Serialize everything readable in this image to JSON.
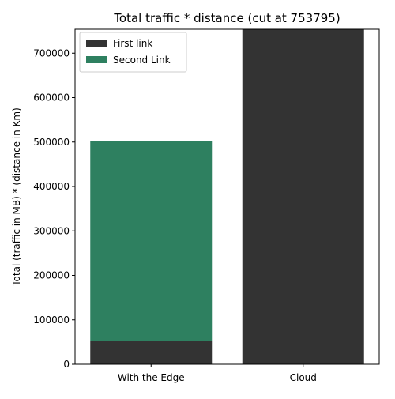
{
  "chart_data": {
    "type": "bar",
    "stacked": true,
    "title": "Total traffic * distance (cut at 753795)",
    "xlabel": "",
    "ylabel": "Total (traffic in MB) * (distance in Km)",
    "categories": [
      "With the Edge",
      "Cloud"
    ],
    "series": [
      {
        "name": "First link",
        "color": "#333333",
        "values": [
          52000,
          753795
        ]
      },
      {
        "name": "Second Link",
        "color": "#2e8060",
        "values": [
          450000,
          0
        ]
      }
    ],
    "ylim": [
      0,
      753795
    ],
    "yticks": [
      0,
      100000,
      200000,
      300000,
      400000,
      500000,
      600000,
      700000
    ],
    "ytick_labels": [
      "0",
      "100000",
      "200000",
      "300000",
      "400000",
      "500000",
      "600000",
      "700000"
    ],
    "grid": false,
    "legend_position": "top-left"
  }
}
